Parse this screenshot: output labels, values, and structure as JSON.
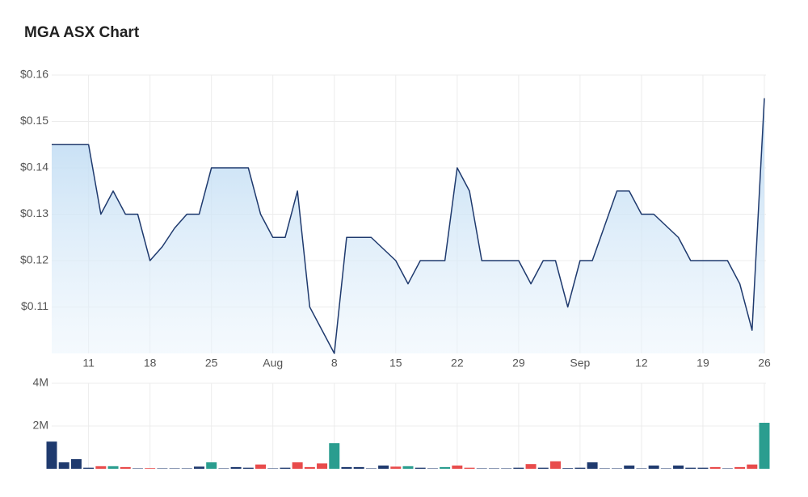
{
  "chart_data": [
    {
      "type": "area",
      "title": "MGA ASX Chart",
      "categories": [
        null,
        null,
        null,
        "11",
        null,
        null,
        null,
        null,
        "18",
        null,
        null,
        null,
        null,
        "25",
        null,
        null,
        null,
        null,
        "Aug",
        null,
        null,
        null,
        null,
        "8",
        null,
        null,
        null,
        null,
        "15",
        null,
        null,
        null,
        null,
        "22",
        null,
        null,
        null,
        null,
        "29",
        null,
        null,
        null,
        null,
        "Sep",
        null,
        null,
        null,
        null,
        "12",
        null,
        null,
        null,
        null,
        "19",
        null,
        null,
        null,
        null,
        "26"
      ],
      "values": [
        0.145,
        0.145,
        0.145,
        0.145,
        0.13,
        0.135,
        0.13,
        0.13,
        0.12,
        0.123,
        0.127,
        0.13,
        0.13,
        0.14,
        0.14,
        0.14,
        0.14,
        0.13,
        0.125,
        0.125,
        0.135,
        0.11,
        0.105,
        0.1,
        0.125,
        0.125,
        0.125,
        0.1225,
        0.12,
        0.115,
        0.12,
        0.12,
        0.12,
        0.14,
        0.135,
        0.12,
        0.12,
        0.12,
        0.12,
        0.115,
        0.12,
        0.12,
        0.11,
        0.12,
        0.12,
        0.1275,
        0.135,
        0.135,
        0.13,
        0.13,
        0.1275,
        0.125,
        0.12,
        0.12,
        0.12,
        0.12,
        0.115,
        0.105,
        0.155
      ],
      "color": "#1f3a6e",
      "ylim": [
        0.1,
        0.16
      ],
      "yticks": [
        {
          "value": 0.11,
          "label": "$0.11"
        },
        {
          "value": 0.12,
          "label": "$0.12"
        },
        {
          "value": 0.13,
          "label": "$0.13"
        },
        {
          "value": 0.14,
          "label": "$0.14"
        },
        {
          "value": 0.15,
          "label": "$0.15"
        },
        {
          "value": 0.16,
          "label": "$0.16"
        }
      ],
      "grid": true
    },
    {
      "type": "bar",
      "values": [
        1270000,
        300000,
        450000,
        50000,
        120000,
        120000,
        80000,
        20000,
        30000,
        20000,
        20000,
        20000,
        100000,
        300000,
        20000,
        80000,
        50000,
        200000,
        20000,
        50000,
        300000,
        80000,
        250000,
        1200000,
        80000,
        80000,
        20000,
        150000,
        100000,
        120000,
        50000,
        20000,
        80000,
        150000,
        50000,
        20000,
        20000,
        20000,
        50000,
        220000,
        50000,
        350000,
        30000,
        50000,
        300000,
        20000,
        20000,
        150000,
        20000,
        150000,
        20000,
        150000,
        50000,
        50000,
        80000,
        20000,
        80000,
        200000,
        2150000
      ],
      "colors": [
        "#1f3a6e",
        "#1f3a6e",
        "#1f3a6e",
        "#1f3a6e",
        "#e84b4b",
        "#2a9d8f",
        "#e84b4b",
        "#1f3a6e",
        "#e84b4b",
        "#1f3a6e",
        "#1f3a6e",
        "#1f3a6e",
        "#1f3a6e",
        "#2a9d8f",
        "#1f3a6e",
        "#1f3a6e",
        "#1f3a6e",
        "#e84b4b",
        "#1f3a6e",
        "#1f3a6e",
        "#e84b4b",
        "#e84b4b",
        "#e84b4b",
        "#2a9d8f",
        "#1f3a6e",
        "#1f3a6e",
        "#1f3a6e",
        "#1f3a6e",
        "#e84b4b",
        "#2a9d8f",
        "#1f3a6e",
        "#1f3a6e",
        "#2a9d8f",
        "#e84b4b",
        "#e84b4b",
        "#1f3a6e",
        "#1f3a6e",
        "#1f3a6e",
        "#1f3a6e",
        "#e84b4b",
        "#1f3a6e",
        "#e84b4b",
        "#1f3a6e",
        "#1f3a6e",
        "#1f3a6e",
        "#1f3a6e",
        "#1f3a6e",
        "#1f3a6e",
        "#1f3a6e",
        "#1f3a6e",
        "#1f3a6e",
        "#1f3a6e",
        "#1f3a6e",
        "#1f3a6e",
        "#e84b4b",
        "#1f3a6e",
        "#e84b4b",
        "#e84b4b",
        "#2a9d8f"
      ],
      "ylim": [
        0,
        4000000
      ],
      "yticks": [
        {
          "value": 2000000,
          "label": "2M"
        },
        {
          "value": 4000000,
          "label": "4M"
        }
      ],
      "grid": true
    }
  ]
}
